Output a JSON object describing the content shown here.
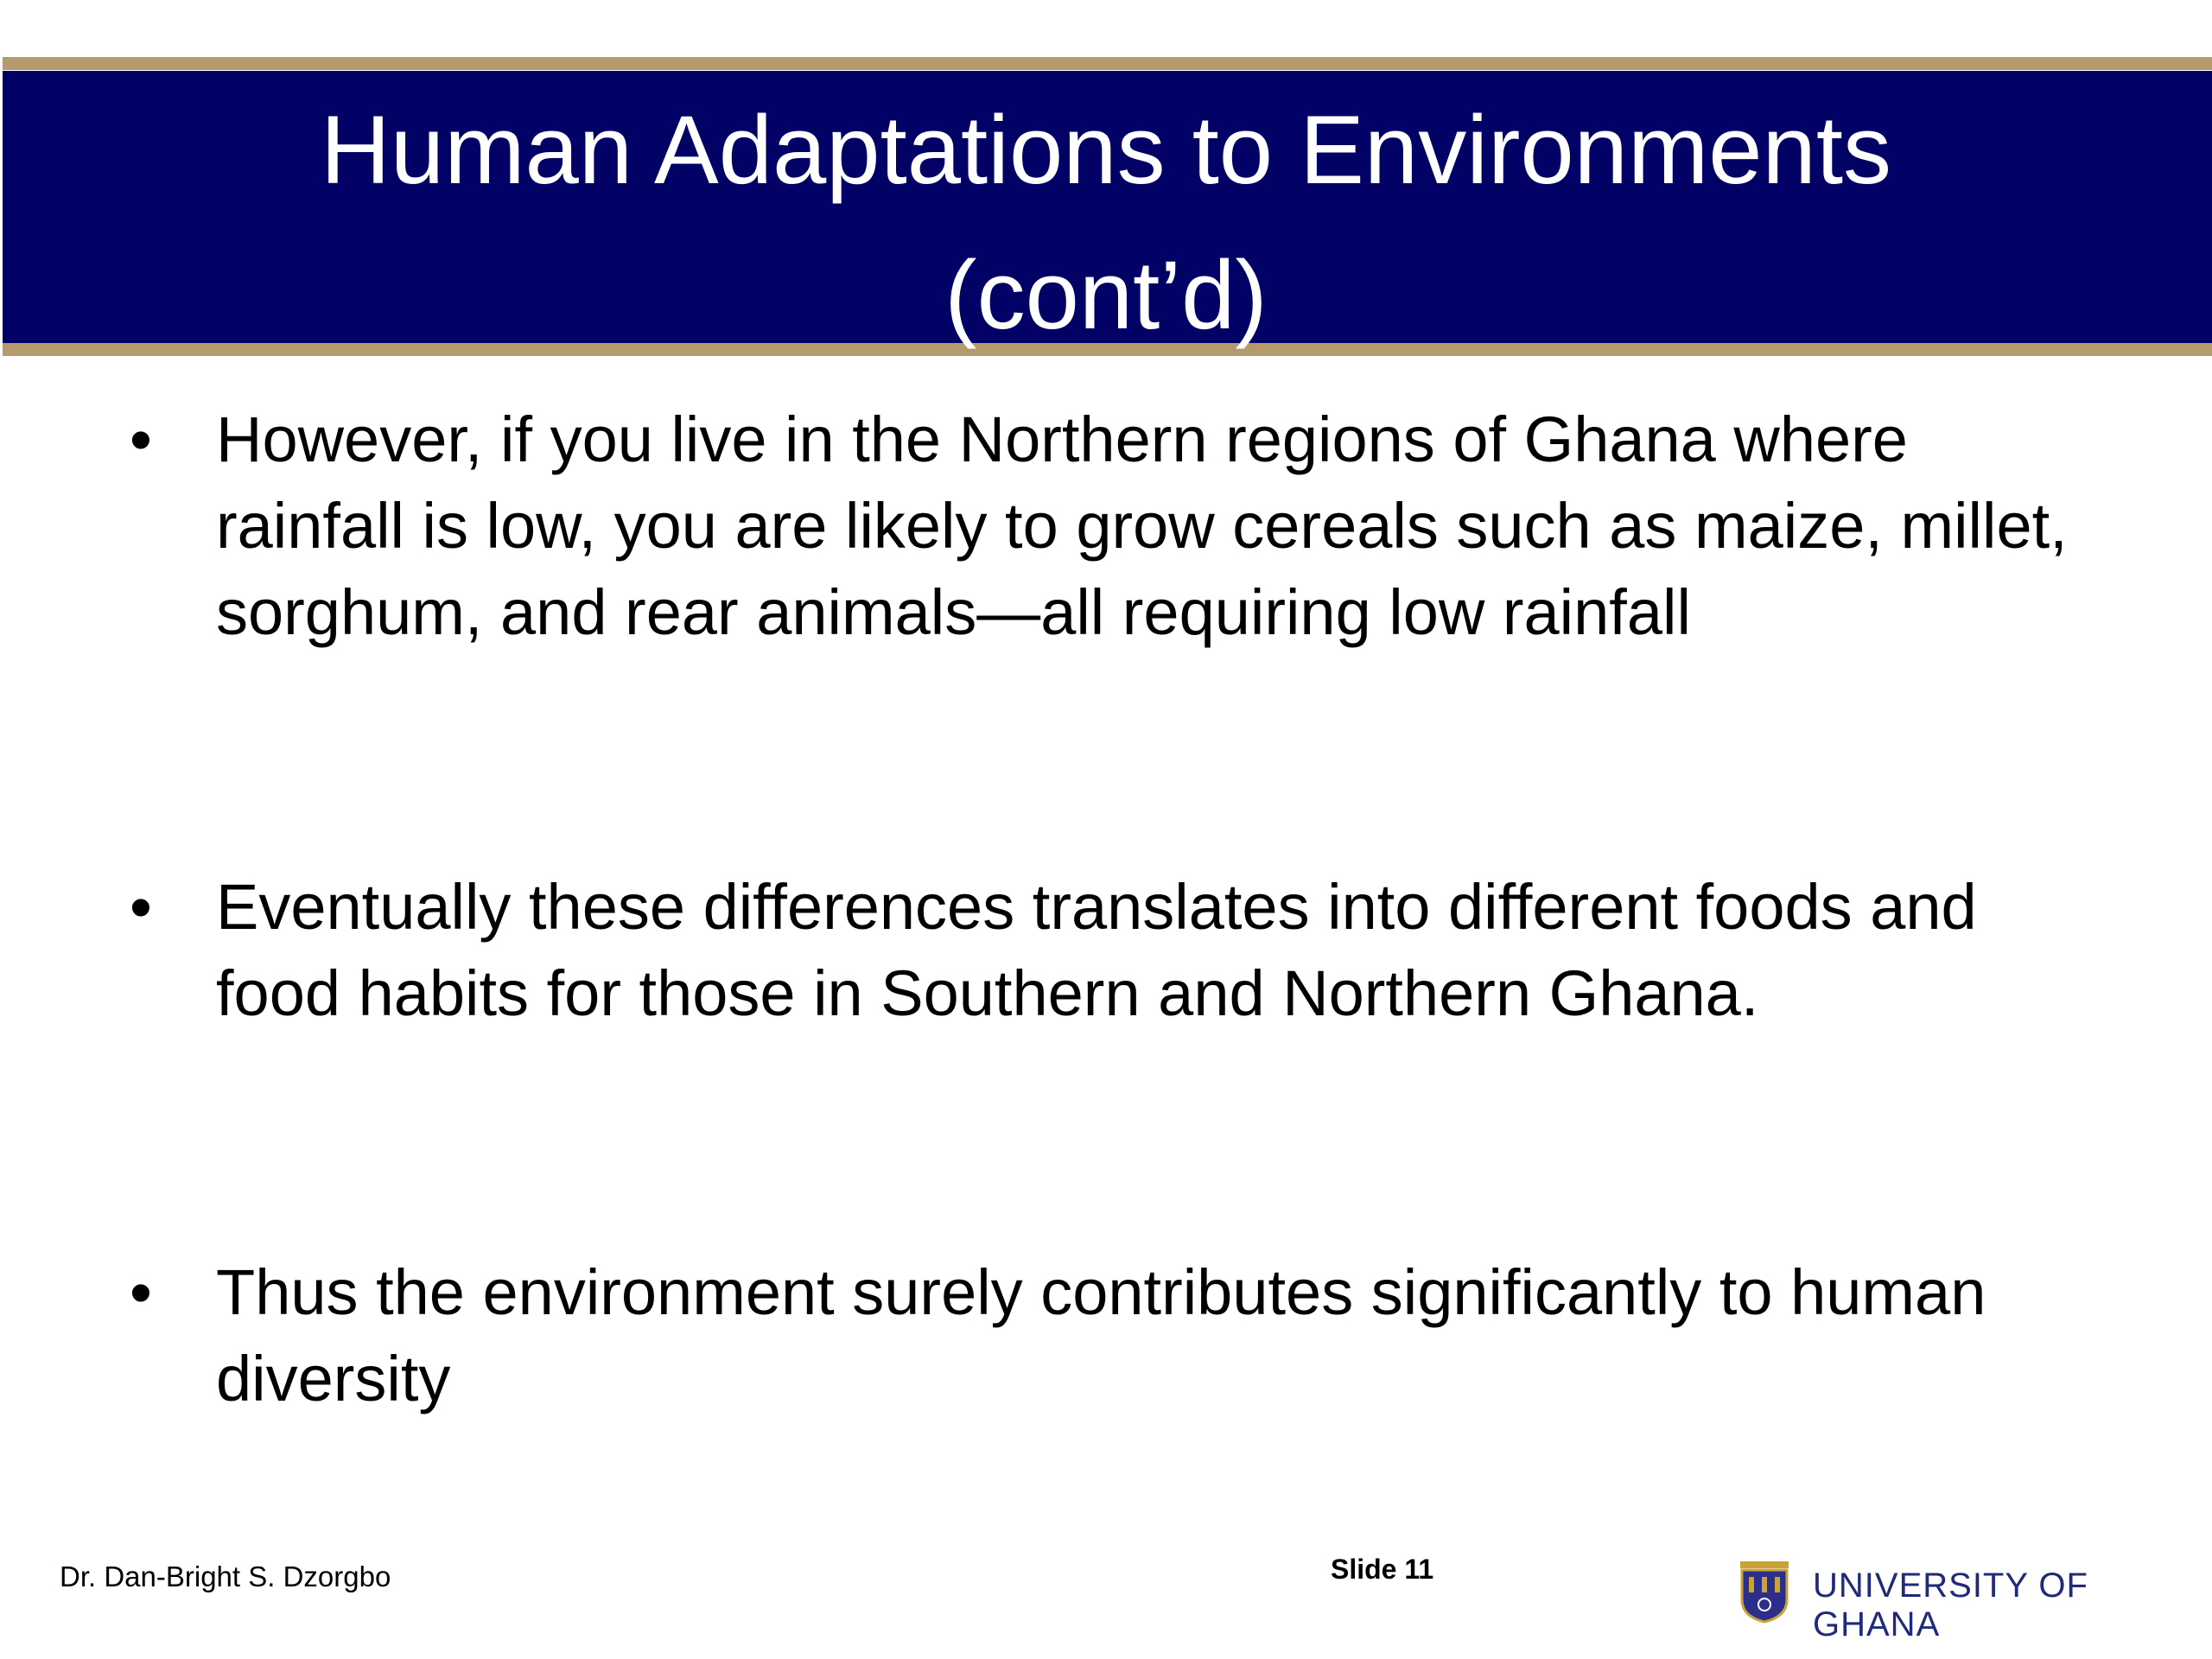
{
  "header": {
    "title": "Human Adaptations to Environments (cont’d)"
  },
  "bullets": [
    "However, if you live in the Northern regions of Ghana where rainfall is low, you are likely to grow cereals such as maize, millet, sorghum, and rear animals—all requiring low rainfall",
    "Eventually these differences translates into different foods and food habits for those in Southern and Northern Ghana.",
    "Thus the environment surely contributes significantly to human diversity"
  ],
  "footer": {
    "author": "Dr. Dan-Bright S. Dzorgbo",
    "slide": "Slide 11",
    "institution": "UNIVERSITY OF GHANA"
  }
}
